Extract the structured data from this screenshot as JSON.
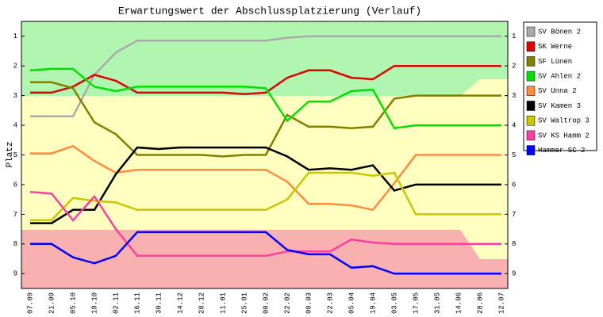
{
  "chart_data": {
    "type": "line",
    "title": "Erwartungswert der Abschlussplatzierung (Verlauf)",
    "y_label": "Platz",
    "categories": [
      "07.09",
      "21.09",
      "05.10",
      "19.10",
      "02.11",
      "16.11",
      "30.11",
      "14.12",
      "28.12",
      "11.01",
      "25.01",
      "08.02",
      "22.02",
      "08.03",
      "22.03",
      "05.04",
      "19.04",
      "03.05",
      "17.05",
      "31.05",
      "14.06",
      "28.06",
      "12.07"
    ],
    "ylim": [
      0.5,
      9.5
    ],
    "y_reversed": true,
    "yticks": [
      1,
      2,
      3,
      4,
      5,
      6,
      7,
      8,
      9
    ],
    "series": [
      {
        "name": "SV Bönen 2",
        "color": "#aaaaaa",
        "values": [
          3.7,
          3.7,
          3.7,
          2.3,
          1.55,
          1.15,
          1.15,
          1.15,
          1.15,
          1.15,
          1.15,
          1.15,
          1.05,
          1,
          1,
          1,
          1,
          1,
          1,
          1,
          1,
          1,
          1
        ]
      },
      {
        "name": "SK Werne",
        "color": "#e00000",
        "values": [
          2.9,
          2.9,
          2.7,
          2.3,
          2.5,
          2.9,
          2.9,
          2.9,
          2.9,
          2.9,
          2.95,
          2.9,
          2.4,
          2.15,
          2.15,
          2.4,
          2.45,
          2,
          2,
          2,
          2,
          2,
          2
        ]
      },
      {
        "name": "SF Lünen",
        "color": "#808000",
        "values": [
          2.55,
          2.55,
          2.75,
          3.9,
          4.3,
          5,
          5,
          5,
          5,
          5.05,
          5,
          5,
          3.65,
          4.05,
          4.05,
          4.1,
          4.05,
          3.1,
          3,
          3,
          3,
          3,
          3
        ]
      },
      {
        "name": "SV Ahlen 2",
        "color": "#00e000",
        "values": [
          2.15,
          2.1,
          2.1,
          2.7,
          2.85,
          2.7,
          2.7,
          2.7,
          2.7,
          2.7,
          2.7,
          2.75,
          3.85,
          3.2,
          3.2,
          2.85,
          2.8,
          4.1,
          4,
          4,
          4,
          4,
          4
        ]
      },
      {
        "name": "SV Unna 2",
        "color": "#ff8c40",
        "values": [
          4.95,
          4.95,
          4.7,
          5.2,
          5.6,
          5.5,
          5.5,
          5.5,
          5.5,
          5.5,
          5.5,
          5.5,
          5.9,
          6.65,
          6.65,
          6.7,
          6.85,
          5.95,
          5,
          5,
          5,
          5,
          5
        ]
      },
      {
        "name": "SV Kamen 3",
        "color": "#000000",
        "values": [
          7.3,
          7.3,
          6.85,
          6.85,
          5.65,
          4.75,
          4.8,
          4.75,
          4.75,
          4.75,
          4.75,
          4.75,
          5.05,
          5.5,
          5.45,
          5.5,
          5.35,
          6.2,
          6,
          6,
          6,
          6,
          6
        ]
      },
      {
        "name": "SV Waltrop 3",
        "color": "#c8c800",
        "values": [
          7.2,
          7.2,
          6.45,
          6.55,
          6.6,
          6.85,
          6.85,
          6.85,
          6.85,
          6.85,
          6.85,
          6.85,
          6.5,
          5.6,
          5.6,
          5.6,
          5.7,
          5.6,
          7,
          7,
          7,
          7,
          7
        ]
      },
      {
        "name": "SV KS Hamm 2",
        "color": "#ff40a0",
        "values": [
          6.25,
          6.3,
          7.2,
          6.4,
          7.5,
          8.4,
          8.4,
          8.4,
          8.4,
          8.4,
          8.4,
          8.4,
          8.25,
          8.25,
          8.25,
          7.85,
          7.95,
          8,
          8,
          8,
          8,
          8,
          8
        ]
      },
      {
        "name": "Hammer SC 2",
        "color": "#0000ff",
        "values": [
          8,
          8,
          8.45,
          8.65,
          8.4,
          7.6,
          7.6,
          7.6,
          7.6,
          7.6,
          7.6,
          7.6,
          8.2,
          8.35,
          8.35,
          8.8,
          8.75,
          9,
          9,
          9,
          9,
          9,
          9
        ]
      }
    ]
  }
}
